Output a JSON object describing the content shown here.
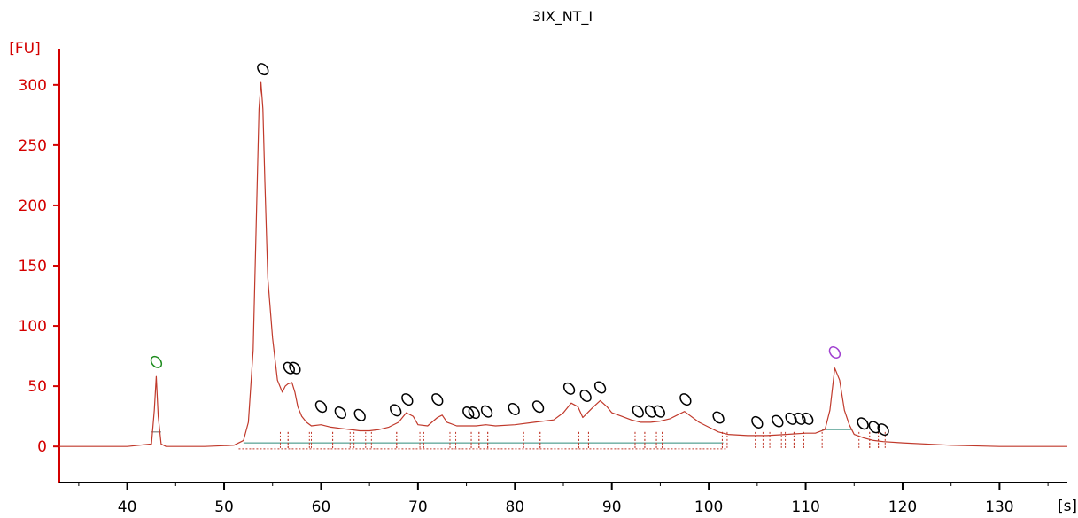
{
  "chart_data": {
    "type": "line",
    "title": "3IX_NT_I",
    "xlabel": "[s]",
    "ylabel": "[FU]",
    "xlim": [
      33,
      137
    ],
    "ylim": [
      -30,
      330
    ],
    "x_ticks": [
      "40",
      "50",
      "60",
      "70",
      "80",
      "90",
      "100",
      "110",
      "120",
      "130"
    ],
    "y_ticks": [
      "0",
      "50",
      "100",
      "150",
      "200",
      "250",
      "300"
    ],
    "grid": false,
    "colors": {
      "trace": "#c0392b",
      "axis": "#d40000",
      "baseline": "#2e8b7a",
      "marker": "#000000",
      "lower_marker": "#1e8c1e",
      "upper_marker": "#a040d0"
    },
    "series": [
      {
        "x": [
          33,
          36,
          40,
          42.5,
          42.8,
          43.0,
          43.2,
          43.5,
          44,
          48,
          51,
          52,
          52.5,
          53,
          53.3,
          53.6,
          53.8,
          54.0,
          54.2,
          54.5,
          55,
          55.5,
          56,
          56.3,
          56.6,
          57.0,
          57.3,
          57.6,
          58,
          58.5,
          59,
          60,
          61,
          62,
          63,
          64,
          65,
          66,
          67,
          68,
          68.8,
          69.5,
          70,
          71,
          72,
          72.5,
          73,
          74,
          75,
          76,
          77,
          78,
          80,
          82,
          84,
          85,
          85.8,
          86.5,
          87,
          87.5,
          88,
          88.8,
          89.5,
          90,
          91,
          92,
          93,
          94,
          95,
          96,
          97,
          97.5,
          98,
          99,
          100,
          101,
          102,
          104,
          106,
          108,
          110,
          111,
          112,
          112.5,
          113.0,
          113.5,
          114,
          114.5,
          115,
          116,
          117,
          118,
          120,
          125,
          130,
          137
        ],
        "y": [
          0,
          0,
          0,
          2,
          30,
          58,
          25,
          2,
          0,
          0,
          1,
          5,
          20,
          80,
          180,
          280,
          302,
          280,
          220,
          140,
          90,
          55,
          45,
          50,
          52,
          53,
          45,
          33,
          25,
          20,
          17,
          18,
          16,
          15,
          14,
          13,
          13,
          14,
          16,
          20,
          28,
          25,
          18,
          17,
          24,
          26,
          20,
          17,
          17,
          17,
          18,
          17,
          18,
          20,
          22,
          28,
          36,
          33,
          24,
          28,
          32,
          38,
          33,
          28,
          25,
          22,
          20,
          20,
          21,
          23,
          27,
          29,
          26,
          20,
          16,
          12,
          10,
          9,
          9,
          10,
          11,
          11,
          14,
          30,
          65,
          55,
          30,
          18,
          10,
          7,
          5,
          4,
          3,
          1,
          0,
          0
        ]
      }
    ],
    "baseline_level": 3,
    "marked_peaks": [
      {
        "x": 43.0,
        "y": 70,
        "kind": "lower"
      },
      {
        "x": 54.0,
        "y": 313,
        "kind": "peak"
      },
      {
        "x": 56.7,
        "y": 65,
        "kind": "peak"
      },
      {
        "x": 57.3,
        "y": 65,
        "kind": "peak"
      },
      {
        "x": 60.0,
        "y": 33,
        "kind": "peak"
      },
      {
        "x": 62.0,
        "y": 28,
        "kind": "peak"
      },
      {
        "x": 64.0,
        "y": 26,
        "kind": "peak"
      },
      {
        "x": 67.7,
        "y": 30,
        "kind": "peak"
      },
      {
        "x": 68.9,
        "y": 39,
        "kind": "peak"
      },
      {
        "x": 72.0,
        "y": 39,
        "kind": "peak"
      },
      {
        "x": 75.2,
        "y": 28,
        "kind": "peak"
      },
      {
        "x": 75.8,
        "y": 28,
        "kind": "peak"
      },
      {
        "x": 77.1,
        "y": 29,
        "kind": "peak"
      },
      {
        "x": 79.9,
        "y": 31,
        "kind": "peak"
      },
      {
        "x": 82.4,
        "y": 33,
        "kind": "peak"
      },
      {
        "x": 85.6,
        "y": 48,
        "kind": "peak"
      },
      {
        "x": 87.3,
        "y": 42,
        "kind": "peak"
      },
      {
        "x": 88.8,
        "y": 49,
        "kind": "peak"
      },
      {
        "x": 92.7,
        "y": 29,
        "kind": "peak"
      },
      {
        "x": 94.0,
        "y": 29,
        "kind": "peak"
      },
      {
        "x": 94.9,
        "y": 29,
        "kind": "peak"
      },
      {
        "x": 97.6,
        "y": 39,
        "kind": "peak"
      },
      {
        "x": 101.0,
        "y": 24,
        "kind": "peak"
      },
      {
        "x": 105.0,
        "y": 20,
        "kind": "peak"
      },
      {
        "x": 107.1,
        "y": 21,
        "kind": "peak"
      },
      {
        "x": 108.5,
        "y": 23,
        "kind": "peak"
      },
      {
        "x": 109.4,
        "y": 23,
        "kind": "peak"
      },
      {
        "x": 110.2,
        "y": 23,
        "kind": "peak"
      },
      {
        "x": 113.0,
        "y": 78,
        "kind": "upper"
      },
      {
        "x": 115.9,
        "y": 19,
        "kind": "peak"
      },
      {
        "x": 117.1,
        "y": 16,
        "kind": "peak"
      },
      {
        "x": 118.0,
        "y": 14,
        "kind": "peak"
      }
    ],
    "peak_windows": [
      [
        55.8,
        56.6
      ],
      [
        56.6,
        58.8
      ],
      [
        59.0,
        61.2
      ],
      [
        61.2,
        63.0
      ],
      [
        63.4,
        64.6
      ],
      [
        65.2,
        67.8
      ],
      [
        67.8,
        70.2
      ],
      [
        70.6,
        73.3
      ],
      [
        73.9,
        75.5
      ],
      [
        75.5,
        76.3
      ],
      [
        76.3,
        77.2
      ],
      [
        77.2,
        80.9
      ],
      [
        80.9,
        82.6
      ],
      [
        82.6,
        86.6
      ],
      [
        86.6,
        87.6
      ],
      [
        87.6,
        92.4
      ],
      [
        92.4,
        93.4
      ],
      [
        93.4,
        94.6
      ],
      [
        94.6,
        95.2
      ],
      [
        95.2,
        101.4
      ],
      [
        101.4,
        101.9
      ],
      [
        104.8,
        105.6
      ],
      [
        106.3,
        107.5
      ],
      [
        107.9,
        108.8
      ],
      [
        108.8,
        109.8
      ],
      [
        109.8,
        111.7
      ],
      [
        115.5,
        116.6
      ],
      [
        116.6,
        117.5
      ],
      [
        117.5,
        118.2
      ]
    ]
  }
}
